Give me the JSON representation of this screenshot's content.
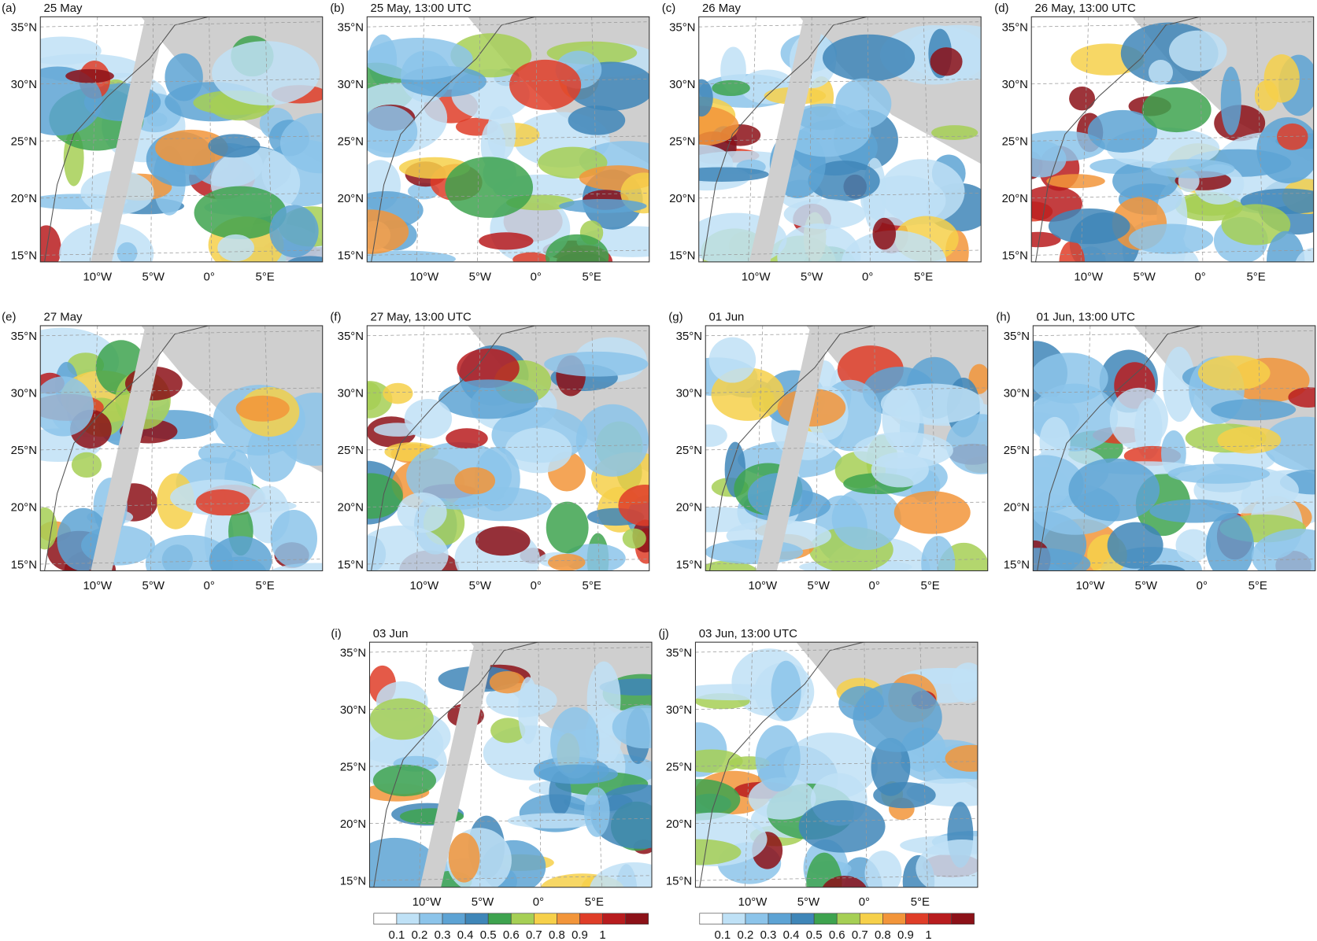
{
  "panels": [
    {
      "label": "(a)",
      "title": "25 May"
    },
    {
      "label": "(b)",
      "title": "25 May, 13:00 UTC"
    },
    {
      "label": "(c)",
      "title": "26 May"
    },
    {
      "label": "(d)",
      "title": "26 May, 13:00 UTC"
    },
    {
      "label": "(e)",
      "title": "27 May"
    },
    {
      "label": "(f)",
      "title": "27 May, 13:00 UTC"
    },
    {
      "label": "(g)",
      "title": "01 Jun"
    },
    {
      "label": "(h)",
      "title": "01 Jun, 13:00 UTC"
    },
    {
      "label": "(i)",
      "title": "03 Jun"
    },
    {
      "label": "(j)",
      "title": "03 Jun, 13:00 UTC"
    }
  ],
  "lat_ticks": [
    "35°N",
    "30°N",
    "25°N",
    "20°N",
    "15°N"
  ],
  "lon_ticks": [
    "10°W",
    "5°W",
    "0°",
    "5°E"
  ],
  "colorbar": {
    "labels": [
      "0.1",
      "0.2",
      "0.3",
      "0.4",
      "0.5",
      "0.6",
      "0.7",
      "0.8",
      "0.9",
      "1"
    ],
    "colors": [
      "#ffffff",
      "#bfe1f6",
      "#8cc4ea",
      "#5da3d4",
      "#3f86b8",
      "#3ea34f",
      "#a6cf55",
      "#f6d04a",
      "#f2953a",
      "#df3d28",
      "#b81c1e",
      "#8c1118"
    ]
  }
}
